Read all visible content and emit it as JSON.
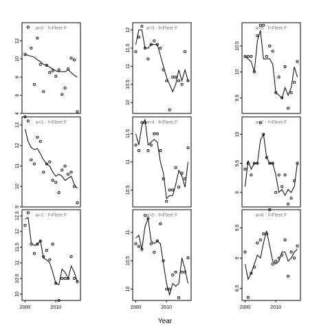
{
  "xlabel": "Year",
  "chart_data": [
    {
      "type": "scatter",
      "label": "a=0 : f=Fleet F",
      "ylim": [
        4,
        14
      ],
      "yticks": [
        4,
        6,
        8,
        10,
        12
      ],
      "show_x_ticks": false,
      "points": [
        [
          2000,
          10.5
        ],
        [
          2001,
          13.5
        ],
        [
          2002,
          11.2
        ],
        [
          2003,
          7.2
        ],
        [
          2004,
          12.3
        ],
        [
          2005,
          9.4
        ],
        [
          2006,
          6.4
        ],
        [
          2007,
          9.3
        ],
        [
          2008,
          8.5
        ],
        [
          2009,
          8.7
        ],
        [
          2010,
          8.1
        ],
        [
          2011,
          8.8
        ],
        [
          2012,
          6.1
        ],
        [
          2013,
          6.8
        ],
        [
          2014,
          8.9
        ],
        [
          2015,
          10.1
        ],
        [
          2016,
          9.9
        ],
        [
          2017,
          4.2
        ]
      ],
      "line": [
        [
          2000,
          10.5
        ],
        [
          2001,
          10.4
        ],
        [
          2002,
          10.3
        ],
        [
          2003,
          10.2
        ],
        [
          2004,
          9.9
        ],
        [
          2005,
          9.7
        ],
        [
          2006,
          9.4
        ],
        [
          2007,
          9.3
        ],
        [
          2008,
          9.1
        ],
        [
          2009,
          8.9
        ],
        [
          2010,
          8.7
        ],
        [
          2011,
          8.6
        ],
        [
          2012,
          8.6
        ],
        [
          2013,
          8.6
        ],
        [
          2014,
          8.8
        ],
        [
          2015,
          8.5
        ],
        [
          2016,
          8.2
        ],
        [
          2017,
          8.0
        ]
      ]
    },
    {
      "type": "scatter",
      "label": "a=3 : f=Fleet F",
      "ylim": [
        9.7,
        12.2
      ],
      "yticks": [
        10.0,
        10.5,
        11.0,
        11.5,
        12.0
      ],
      "show_x_ticks": false,
      "points": [
        [
          2000,
          11.4
        ],
        [
          2001,
          11.8
        ],
        [
          2002,
          12.1
        ],
        [
          2003,
          11.5
        ],
        [
          2004,
          11.2
        ],
        [
          2005,
          11.6
        ],
        [
          2006,
          11.7
        ],
        [
          2007,
          11.6
        ],
        [
          2008,
          11.5
        ],
        [
          2009,
          10.9
        ],
        [
          2010,
          10.6
        ],
        [
          2011,
          9.8
        ],
        [
          2012,
          10.7
        ],
        [
          2013,
          10.7
        ],
        [
          2014,
          10.6
        ],
        [
          2015,
          10.5
        ],
        [
          2016,
          11.4
        ],
        [
          2017,
          10.6
        ]
      ],
      "line": [
        [
          2000,
          11.6
        ],
        [
          2001,
          12.0
        ],
        [
          2002,
          12.0
        ],
        [
          2003,
          11.5
        ],
        [
          2004,
          11.5
        ],
        [
          2005,
          11.6
        ],
        [
          2006,
          11.6
        ],
        [
          2007,
          11.6
        ],
        [
          2008,
          11.3
        ],
        [
          2009,
          11.0
        ],
        [
          2010,
          10.7
        ],
        [
          2011,
          10.5
        ],
        [
          2012,
          10.3
        ],
        [
          2013,
          10.5
        ],
        [
          2014,
          10.9
        ],
        [
          2015,
          10.6
        ],
        [
          2016,
          10.9
        ],
        [
          2017,
          10.6
        ]
      ]
    },
    {
      "type": "scatter",
      "label": "a=6 : f=Fleet F",
      "ylim": [
        9.2,
        10.95
      ],
      "yticks": [
        9.5,
        10.0,
        10.5
      ],
      "show_x_ticks": false,
      "points": [
        [
          2000,
          10.3
        ],
        [
          2001,
          10.3
        ],
        [
          2002,
          10.3
        ],
        [
          2003,
          10.0
        ],
        [
          2004,
          10.7
        ],
        [
          2005,
          10.9
        ],
        [
          2006,
          10.9
        ],
        [
          2007,
          10.3
        ],
        [
          2008,
          10.5
        ],
        [
          2009,
          10.4
        ],
        [
          2010,
          9.6
        ],
        [
          2011,
          9.9
        ],
        [
          2012,
          9.5
        ],
        [
          2013,
          10.1
        ],
        [
          2014,
          9.3
        ],
        [
          2015,
          9.6
        ],
        [
          2016,
          9.8
        ],
        [
          2017,
          10.2
        ]
      ],
      "line": [
        [
          2000,
          10.3
        ],
        [
          2001,
          10.25
        ],
        [
          2002,
          10.2
        ],
        [
          2003,
          10.0
        ],
        [
          2004,
          10.6
        ],
        [
          2005,
          10.8
        ],
        [
          2006,
          10.25
        ],
        [
          2007,
          10.25
        ],
        [
          2008,
          10.25
        ],
        [
          2009,
          10.15
        ],
        [
          2010,
          9.6
        ],
        [
          2011,
          9.55
        ],
        [
          2012,
          9.5
        ],
        [
          2013,
          9.7
        ],
        [
          2014,
          9.55
        ],
        [
          2015,
          9.7
        ],
        [
          2016,
          10.1
        ],
        [
          2017,
          9.9
        ]
      ]
    },
    {
      "type": "scatter",
      "label": "a=1 : f=Fleet F",
      "ylim": [
        9.0,
        13.4
      ],
      "yticks": [
        9,
        10,
        11,
        12,
        13
      ],
      "show_x_ticks": false,
      "points": [
        [
          2000,
          13.4
        ],
        [
          2001,
          13.2
        ],
        [
          2002,
          11.3
        ],
        [
          2003,
          11.1
        ],
        [
          2004,
          12.4
        ],
        [
          2005,
          12.2
        ],
        [
          2006,
          10.7
        ],
        [
          2007,
          11.1
        ],
        [
          2008,
          11.2
        ],
        [
          2009,
          10.3
        ],
        [
          2010,
          10.2
        ],
        [
          2011,
          9.7
        ],
        [
          2012,
          10.8
        ],
        [
          2013,
          11.0
        ],
        [
          2014,
          10.6
        ],
        [
          2015,
          10.7
        ],
        [
          2016,
          10.0
        ],
        [
          2017,
          9.2
        ]
      ],
      "line": [
        [
          2000,
          12.8
        ],
        [
          2001,
          12.2
        ],
        [
          2002,
          11.9
        ],
        [
          2003,
          11.8
        ],
        [
          2004,
          11.85
        ],
        [
          2005,
          11.6
        ],
        [
          2006,
          11.3
        ],
        [
          2007,
          11.1
        ],
        [
          2008,
          11.0
        ],
        [
          2009,
          10.7
        ],
        [
          2010,
          10.5
        ],
        [
          2011,
          10.6
        ],
        [
          2012,
          10.5
        ],
        [
          2013,
          10.3
        ],
        [
          2014,
          10.4
        ],
        [
          2015,
          10.5
        ],
        [
          2016,
          10.1
        ],
        [
          2017,
          9.9
        ]
      ]
    },
    {
      "type": "scatter",
      "label": "a=4 : f=Fleet F",
      "ylim": [
        10.2,
        11.8
      ],
      "yticks": [
        10.5,
        11.0,
        11.5
      ],
      "show_x_ticks": false,
      "points": [
        [
          2000,
          11.3
        ],
        [
          2001,
          11.2
        ],
        [
          2002,
          11.7
        ],
        [
          2003,
          11.7
        ],
        [
          2004,
          11.2
        ],
        [
          2005,
          11.3
        ],
        [
          2006,
          11.5
        ],
        [
          2007,
          11.5
        ],
        [
          2008,
          11.2
        ],
        [
          2009,
          10.7
        ],
        [
          2010,
          10.3
        ],
        [
          2011,
          10.5
        ],
        [
          2012,
          10.5
        ],
        [
          2013,
          10.9
        ],
        [
          2014,
          10.55
        ],
        [
          2015,
          10.8
        ],
        [
          2016,
          10.7
        ],
        [
          2017,
          11.25
        ]
      ],
      "line": [
        [
          2000,
          11.5
        ],
        [
          2001,
          11.3
        ],
        [
          2002,
          11.65
        ],
        [
          2003,
          11.75
        ],
        [
          2004,
          11.3
        ],
        [
          2005,
          11.35
        ],
        [
          2006,
          11.4
        ],
        [
          2007,
          11.35
        ],
        [
          2008,
          11.0
        ],
        [
          2009,
          10.8
        ],
        [
          2010,
          10.35
        ],
        [
          2011,
          10.4
        ],
        [
          2012,
          10.4
        ],
        [
          2013,
          10.6
        ],
        [
          2014,
          10.85
        ],
        [
          2015,
          10.75
        ],
        [
          2016,
          10.55
        ],
        [
          2017,
          11.0
        ]
      ]
    },
    {
      "type": "scatter",
      "label": "a=7 : f=Fleet F",
      "ylim": [
        8.75,
        10.3
      ],
      "yticks": [
        9.0,
        9.5,
        10.0
      ],
      "show_x_ticks": false,
      "points": [
        [
          2000,
          9.4
        ],
        [
          2001,
          9.5
        ],
        [
          2002,
          9.3
        ],
        [
          2003,
          9.5
        ],
        [
          2004,
          9.5
        ],
        [
          2005,
          10.2
        ],
        [
          2006,
          10.0
        ],
        [
          2007,
          9.6
        ],
        [
          2008,
          9.5
        ],
        [
          2009,
          9.5
        ],
        [
          2010,
          9.0
        ],
        [
          2011,
          9.3
        ],
        [
          2012,
          9.1
        ],
        [
          2013,
          9.3
        ],
        [
          2014,
          8.8
        ],
        [
          2015,
          8.9
        ],
        [
          2016,
          9.2
        ],
        [
          2017,
          9.5
        ]
      ],
      "line": [
        [
          2000,
          9.1
        ],
        [
          2001,
          9.55
        ],
        [
          2002,
          9.4
        ],
        [
          2003,
          9.5
        ],
        [
          2004,
          9.5
        ],
        [
          2005,
          9.9
        ],
        [
          2006,
          10.0
        ],
        [
          2007,
          9.6
        ],
        [
          2008,
          9.5
        ],
        [
          2009,
          9.5
        ],
        [
          2010,
          9.3
        ],
        [
          2011,
          9.0
        ],
        [
          2012,
          9.05
        ],
        [
          2013,
          8.95
        ],
        [
          2014,
          9.05
        ],
        [
          2015,
          9.0
        ],
        [
          2016,
          9.1
        ],
        [
          2017,
          9.5
        ]
      ]
    },
    {
      "type": "scatter",
      "label": "a=2 : f=Fleet F",
      "ylim": [
        9.8,
        12.7
      ],
      "yticks": [
        10.0,
        10.5,
        11.0,
        11.5,
        12.0,
        12.5
      ],
      "show_x_ticks": true,
      "xticks": [
        2000,
        2010
      ],
      "points": [
        [
          2000,
          12.2
        ],
        [
          2001,
          12.6
        ],
        [
          2002,
          11.6
        ],
        [
          2003,
          11.3
        ],
        [
          2004,
          11.6
        ],
        [
          2005,
          11.7
        ],
        [
          2006,
          11.2
        ],
        [
          2007,
          11.4
        ],
        [
          2008,
          11.1
        ],
        [
          2009,
          11.6
        ],
        [
          2010,
          10.35
        ],
        [
          2011,
          9.8
        ],
        [
          2012,
          10.5
        ],
        [
          2013,
          10.5
        ],
        [
          2014,
          10.5
        ],
        [
          2015,
          11.2
        ],
        [
          2016,
          10.5
        ],
        [
          2017,
          10.4
        ]
      ],
      "line": [
        [
          2000,
          12.4
        ],
        [
          2001,
          12.45
        ],
        [
          2002,
          11.65
        ],
        [
          2003,
          11.55
        ],
        [
          2004,
          11.6
        ],
        [
          2005,
          11.7
        ],
        [
          2006,
          11.15
        ],
        [
          2007,
          11.1
        ],
        [
          2008,
          11.0
        ],
        [
          2009,
          10.7
        ],
        [
          2010,
          10.35
        ],
        [
          2011,
          10.3
        ],
        [
          2012,
          10.8
        ],
        [
          2013,
          10.7
        ],
        [
          2014,
          10.5
        ],
        [
          2015,
          10.9
        ],
        [
          2016,
          10.7
        ],
        [
          2017,
          10.4
        ]
      ]
    },
    {
      "type": "scatter",
      "label": "a=5 : f=Fleet F",
      "ylim": [
        9.8,
        11.4
      ],
      "yticks": [
        10.0,
        10.5,
        11.0
      ],
      "show_x_ticks": true,
      "xticks": [
        2000,
        2010
      ],
      "points": [
        [
          2000,
          10.8
        ],
        [
          2001,
          10.75
        ],
        [
          2002,
          10.7
        ],
        [
          2003,
          11.3
        ],
        [
          2004,
          11.25
        ],
        [
          2005,
          10.8
        ],
        [
          2006,
          10.65
        ],
        [
          2007,
          10.85
        ],
        [
          2008,
          11.15
        ],
        [
          2009,
          10.5
        ],
        [
          2010,
          10.0
        ],
        [
          2011,
          10.0
        ],
        [
          2012,
          10.25
        ],
        [
          2013,
          10.3
        ],
        [
          2014,
          9.85
        ],
        [
          2015,
          10.3
        ],
        [
          2016,
          10.3
        ],
        [
          2017,
          10.55
        ]
      ],
      "line": [
        [
          2000,
          10.9
        ],
        [
          2001,
          10.95
        ],
        [
          2002,
          10.7
        ],
        [
          2003,
          11.1
        ],
        [
          2004,
          11.25
        ],
        [
          2005,
          10.85
        ],
        [
          2006,
          10.8
        ],
        [
          2007,
          10.85
        ],
        [
          2008,
          10.8
        ],
        [
          2009,
          10.45
        ],
        [
          2010,
          10.1
        ],
        [
          2011,
          9.9
        ],
        [
          2012,
          10.1
        ],
        [
          2013,
          10.05
        ],
        [
          2014,
          10.1
        ],
        [
          2015,
          10.55
        ],
        [
          2016,
          10.35
        ],
        [
          2017,
          10.1
        ]
      ]
    },
    {
      "type": "scatter",
      "label": "a=8 : f=Fleet F",
      "ylim": [
        8.3,
        9.8
      ],
      "yticks": [
        8.5,
        9.0,
        9.5
      ],
      "show_x_ticks": true,
      "xticks": [
        2000,
        2010
      ],
      "points": [
        [
          2000,
          9.1
        ],
        [
          2001,
          8.35
        ],
        [
          2002,
          8.75
        ],
        [
          2003,
          8.85
        ],
        [
          2004,
          9.25
        ],
        [
          2005,
          9.3
        ],
        [
          2006,
          9.4
        ],
        [
          2007,
          9.4
        ],
        [
          2008,
          9.8
        ],
        [
          2009,
          8.9
        ],
        [
          2010,
          8.95
        ],
        [
          2011,
          9.0
        ],
        [
          2012,
          9.05
        ],
        [
          2013,
          9.3
        ],
        [
          2014,
          8.7
        ],
        [
          2015,
          9.1
        ],
        [
          2016,
          9.0
        ],
        [
          2017,
          9.2
        ]
      ],
      "line": [
        [
          2000,
          8.9
        ],
        [
          2001,
          8.65
        ],
        [
          2002,
          8.75
        ],
        [
          2003,
          8.9
        ],
        [
          2004,
          9.05
        ],
        [
          2005,
          9.0
        ],
        [
          2006,
          9.25
        ],
        [
          2007,
          9.45
        ],
        [
          2008,
          9.2
        ],
        [
          2009,
          8.95
        ],
        [
          2010,
          8.9
        ],
        [
          2011,
          8.95
        ],
        [
          2012,
          9.1
        ],
        [
          2013,
          9.1
        ],
        [
          2014,
          8.95
        ],
        [
          2015,
          9.0
        ],
        [
          2016,
          9.1
        ],
        [
          2017,
          9.15
        ]
      ]
    }
  ]
}
